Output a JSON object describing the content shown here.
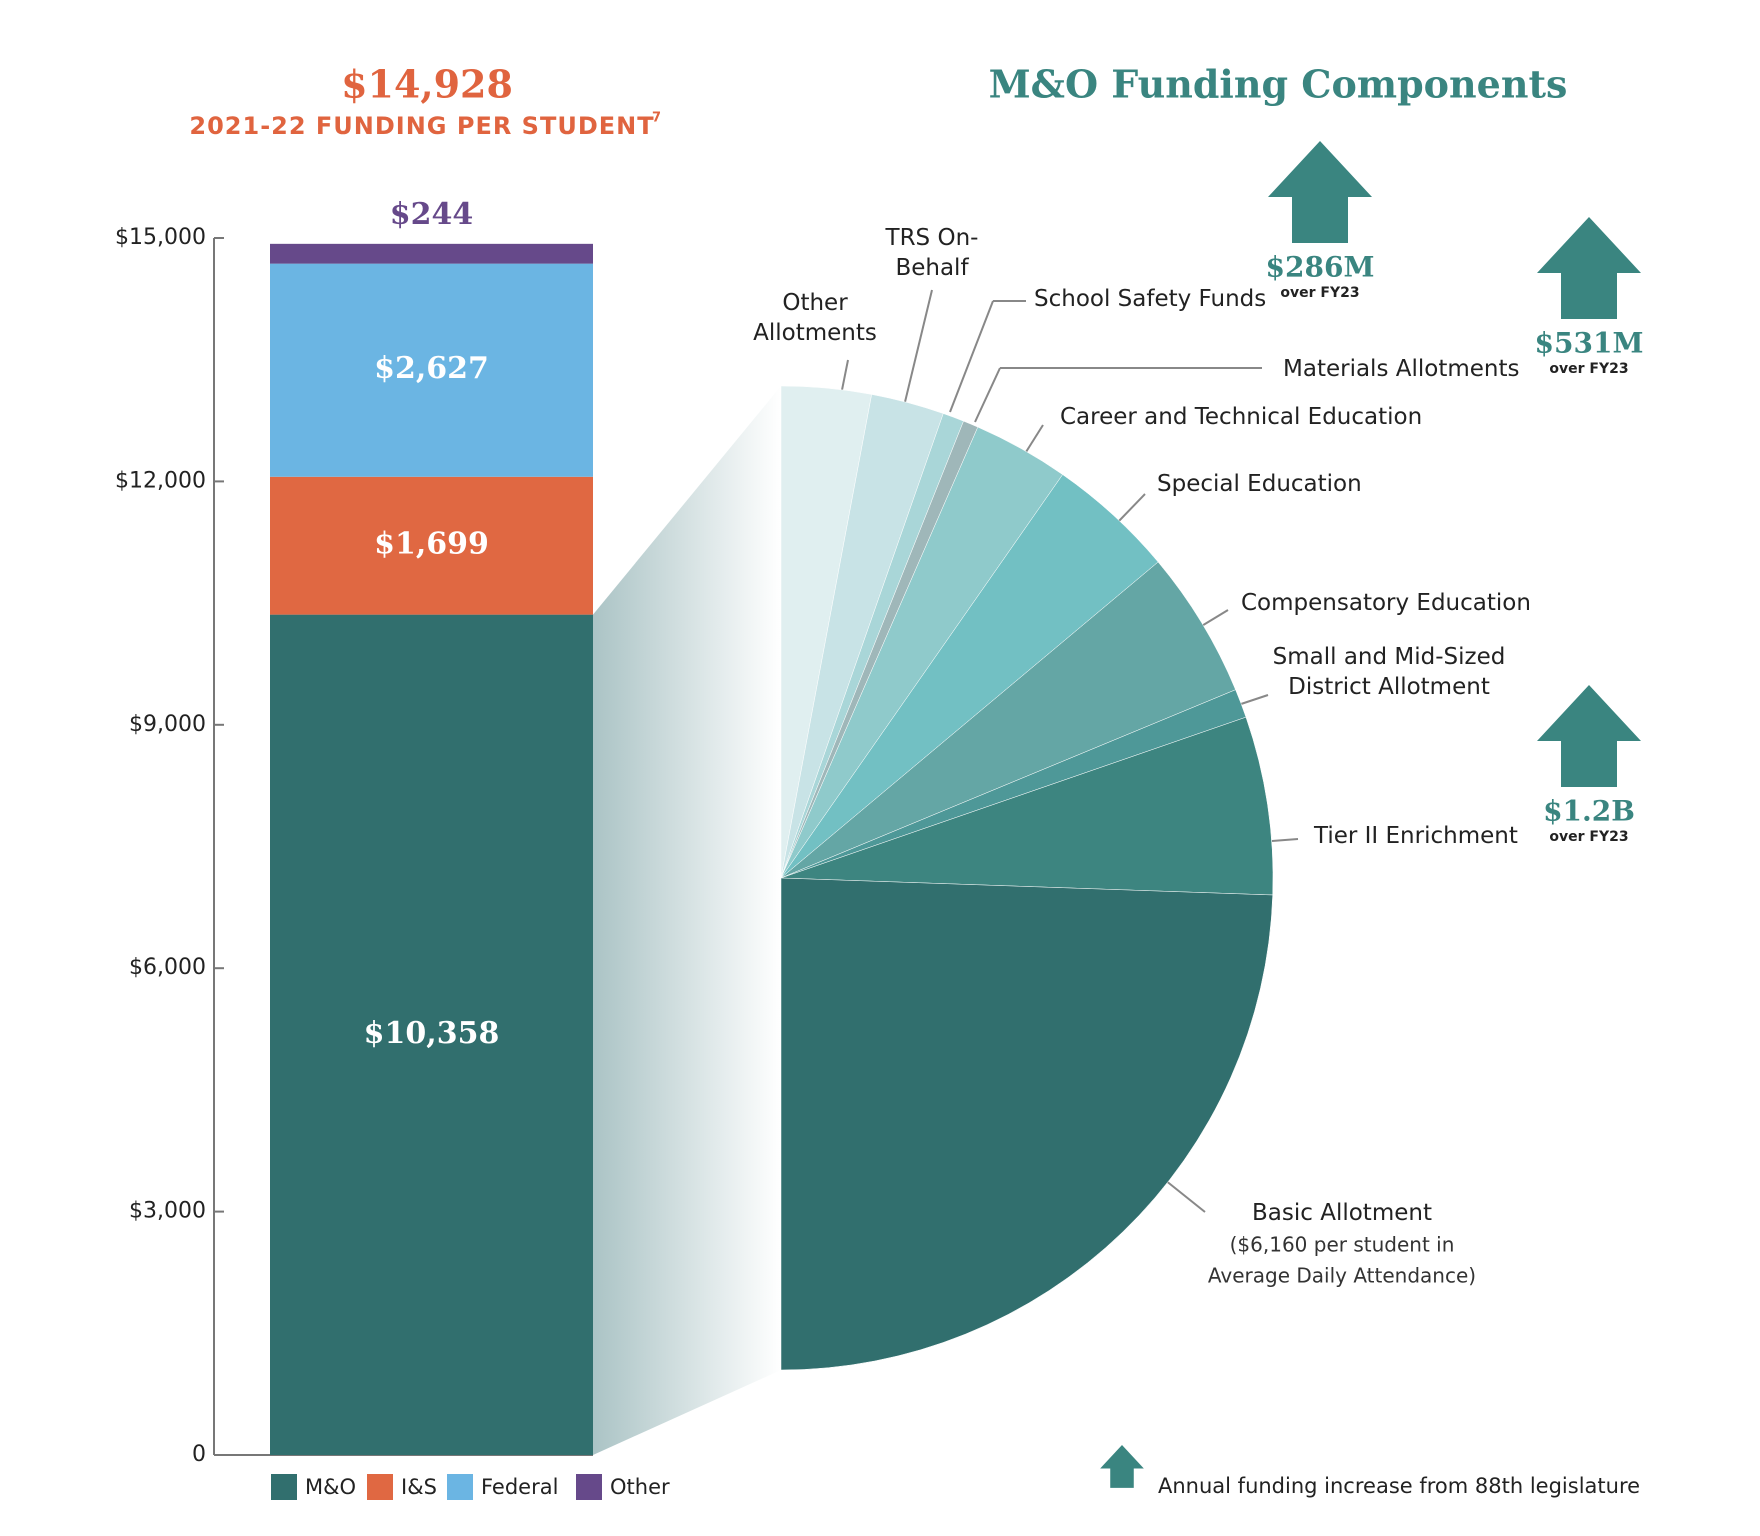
{
  "chart_data": [
    {
      "type": "stacked-bar",
      "title": "$14,928",
      "subtitle": "2021-22 FUNDING PER STUDENT",
      "footnote_mark": "7",
      "categories": [
        null
      ],
      "series": [
        {
          "name": "M&O",
          "color": "#316f6e",
          "values": [
            10358
          ],
          "value_labels": [
            "$10,358"
          ]
        },
        {
          "name": "I&S",
          "color": "#e06842",
          "values": [
            1699
          ],
          "value_labels": [
            "$1,699"
          ]
        },
        {
          "name": "Federal",
          "color": "#6bb5e3",
          "values": [
            2627
          ],
          "value_labels": [
            "$2,627"
          ]
        },
        {
          "name": "Other",
          "color": "#66498a",
          "values": [
            244
          ],
          "value_labels": [
            "$244"
          ]
        }
      ],
      "ylim": [
        0,
        15000
      ],
      "yticks": [
        0,
        {
          "value": 3000,
          "label": "$3,000"
        },
        {
          "value": 6000,
          "label": "$6,000"
        },
        {
          "value": 9000,
          "label": "$9,000"
        },
        {
          "value": 12000,
          "label": "$12,000"
        },
        {
          "value": 15000,
          "label": "$15,000"
        }
      ]
    },
    {
      "type": "half-pie",
      "title": "M&O Funding Components",
      "categories": [
        "Other Allotments",
        "TRS On-Behalf",
        "School Safety Funds",
        "Materials Allotments",
        "Career and Technical Education",
        "Special Education",
        "Compensatory Education",
        "Small and Mid-Sized District Allotment",
        "Tier II Enrichment",
        "Basic Allotment"
      ],
      "values": [
        5.9,
        4.8,
        1.4,
        1.0,
        6.3,
        8.4,
        9.7,
        1.9,
        11.7,
        48.9
      ],
      "colors": [
        "#e0eff0",
        "#c8e3e6",
        "#a9d6d8",
        "#9fb7b9",
        "#8fcacb",
        "#72c0c3",
        "#64a6a5",
        "#4e9898",
        "#3d8580",
        "#316f6e"
      ],
      "subnote": [
        "($6,160 per student in",
        "Average Daily Attendance)"
      ],
      "annotations": [
        {
          "label": "$286M",
          "note": "over FY23"
        },
        {
          "label": "$531M",
          "note": "over FY23"
        },
        {
          "label": "$1.2B",
          "note": "over FY23"
        }
      ],
      "legend_note": "Annual funding increase from 88th legislature"
    }
  ]
}
